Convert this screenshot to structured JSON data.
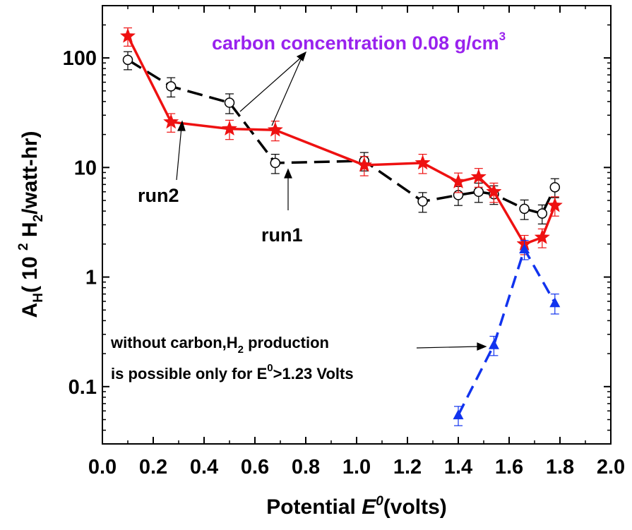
{
  "chart_data": {
    "type": "line",
    "xlabel": {
      "main": "Potential ",
      "sym": "E",
      "sup": "0",
      "unit": "(volts)"
    },
    "ylabel": {
      "a": "A",
      "a_sub": "H",
      "open": "( 10 ",
      "exp": "2",
      "h": "  H",
      "h_sub": "2",
      "rest": "/watt-hr)"
    },
    "xlim": [
      0.0,
      2.0
    ],
    "ylim": [
      0.03,
      300
    ],
    "yscale": "log",
    "x_ticks": [
      "0.0",
      "0.2",
      "0.4",
      "0.6",
      "0.8",
      "1.0",
      "1.2",
      "1.4",
      "1.6",
      "1.8",
      "2.0"
    ],
    "y_ticks": [
      "0.1",
      "1",
      "10",
      "100"
    ],
    "grid": false,
    "series": [
      {
        "name": "run1",
        "color": "#000000",
        "marker": "open-circle",
        "dash": "dash",
        "x": [
          0.1,
          0.27,
          0.5,
          0.68,
          1.03,
          1.26,
          1.4,
          1.48,
          1.54,
          1.66,
          1.73,
          1.78
        ],
        "y": [
          96,
          55,
          39,
          11,
          11.5,
          4.9,
          5.6,
          6.0,
          5.7,
          4.2,
          3.8,
          6.6
        ],
        "err": [
          18,
          11,
          8,
          2.2,
          2.2,
          1.0,
          1.1,
          1.2,
          1.1,
          0.85,
          0.75,
          1.3
        ]
      },
      {
        "name": "run2",
        "color": "#ee1111",
        "marker": "star",
        "dash": "solid",
        "x": [
          0.1,
          0.27,
          0.5,
          0.68,
          1.03,
          1.26,
          1.4,
          1.48,
          1.54,
          1.66,
          1.73,
          1.78
        ],
        "y": [
          158,
          26,
          22.5,
          22,
          10.5,
          11,
          7.4,
          8.2,
          6.0,
          2.0,
          2.3,
          4.5
        ],
        "err": [
          30,
          5,
          4.5,
          4.5,
          2.1,
          2.2,
          1.5,
          1.6,
          1.2,
          0.4,
          0.45,
          0.9
        ]
      },
      {
        "name": "",
        "color": "#1133ee",
        "marker": "triangle",
        "dash": "dash",
        "x": [
          1.4,
          1.54,
          1.66,
          1.78
        ],
        "y": [
          0.055,
          0.24,
          1.8,
          0.58
        ],
        "err": [
          0.011,
          0.048,
          0.36,
          0.12
        ]
      }
    ],
    "annotations": {
      "run2_label": "run2",
      "run1_label": "run1",
      "title": {
        "text": "carbon concentration 0.08 g/cm",
        "sup": "3"
      },
      "note_line1": {
        "a": "without carbon,H",
        "sub": "2",
        "b": " production"
      },
      "note_line2": {
        "a": "is possible only for E",
        "sup": "0",
        "b": ">1.23 Volts"
      }
    },
    "colors": {
      "title": "#9922ee"
    }
  }
}
